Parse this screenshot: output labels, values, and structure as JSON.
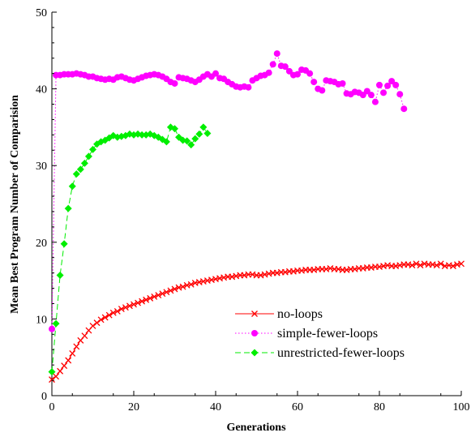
{
  "chart_data": {
    "type": "line",
    "title": "",
    "xlabel": "Generations",
    "ylabel": "Mean Best Program Number of Comparision",
    "xlim": [
      0,
      100
    ],
    "ylim": [
      0,
      50
    ],
    "x_ticks": [
      0,
      20,
      40,
      60,
      80,
      100
    ],
    "y_ticks": [
      0,
      10,
      20,
      30,
      40,
      50
    ],
    "x_tick_labels": [
      "0",
      "20",
      "40",
      "60",
      "80",
      "100"
    ],
    "y_tick_labels": [
      "0",
      "10",
      "20",
      "30",
      "40",
      "50"
    ],
    "grid": false,
    "legend_position": "bottom-right",
    "series": [
      {
        "name": "no-loops",
        "color": "#ff0000",
        "marker": "x",
        "line_style": "solid",
        "x_start": 0,
        "x_step": 1,
        "values": [
          2.1,
          2.5,
          3.2,
          3.9,
          4.6,
          5.5,
          6.4,
          7.2,
          7.8,
          8.5,
          9.1,
          9.5,
          9.9,
          10.2,
          10.5,
          10.8,
          11.0,
          11.3,
          11.5,
          11.7,
          11.9,
          12.1,
          12.3,
          12.5,
          12.7,
          12.9,
          13.1,
          13.3,
          13.5,
          13.7,
          13.9,
          14.1,
          14.2,
          14.4,
          14.5,
          14.7,
          14.8,
          14.9,
          15.0,
          15.1,
          15.2,
          15.3,
          15.4,
          15.5,
          15.5,
          15.6,
          15.7,
          15.7,
          15.8,
          15.8,
          15.7,
          15.7,
          15.8,
          15.9,
          16.0,
          16.0,
          16.1,
          16.1,
          16.2,
          16.2,
          16.3,
          16.3,
          16.4,
          16.4,
          16.4,
          16.5,
          16.5,
          16.5,
          16.6,
          16.5,
          16.5,
          16.4,
          16.4,
          16.5,
          16.5,
          16.6,
          16.6,
          16.7,
          16.7,
          16.8,
          16.8,
          16.9,
          17.0,
          16.9,
          16.9,
          17.0,
          17.1,
          17.1,
          17.0,
          17.2,
          17.0,
          17.2,
          17.1,
          17.1,
          17.0,
          17.2,
          16.9,
          17.0,
          16.9,
          17.1,
          17.2
        ]
      },
      {
        "name": "simple-fewer-loops",
        "color": "#ff00ff",
        "marker": "circle",
        "line_style": "dotted",
        "x_start": 0,
        "x_step": 1,
        "values": [
          8.7,
          41.8,
          41.8,
          41.9,
          41.9,
          41.9,
          42.0,
          41.9,
          41.8,
          41.6,
          41.6,
          41.4,
          41.3,
          41.2,
          41.3,
          41.2,
          41.5,
          41.6,
          41.4,
          41.2,
          41.1,
          41.3,
          41.5,
          41.7,
          41.8,
          41.9,
          41.8,
          41.6,
          41.3,
          40.9,
          40.7,
          41.5,
          41.4,
          41.3,
          41.1,
          40.9,
          41.2,
          41.6,
          41.9,
          41.6,
          42.0,
          41.4,
          41.3,
          40.9,
          40.6,
          40.3,
          40.2,
          40.3,
          40.2,
          41.1,
          41.4,
          41.7,
          41.8,
          42.1,
          43.2,
          44.6,
          43.0,
          42.9,
          42.3,
          41.8,
          41.9,
          42.5,
          42.4,
          42.0,
          40.9,
          40.0,
          39.8,
          41.1,
          41.0,
          40.9,
          40.6,
          40.7,
          39.4,
          39.3,
          39.6,
          39.5,
          39.2,
          39.7,
          39.2,
          38.3,
          40.5,
          39.5,
          40.4,
          41.0,
          40.5,
          39.3,
          37.4
        ]
      },
      {
        "name": "unrestricted-fewer-loops",
        "color": "#00ee00",
        "marker": "diamond",
        "line_style": "dashed",
        "x_start": 0,
        "x_step": 1,
        "values": [
          3.1,
          9.4,
          15.7,
          19.8,
          24.4,
          27.3,
          28.9,
          29.5,
          30.3,
          31.2,
          32.1,
          32.8,
          33.1,
          33.3,
          33.6,
          33.9,
          33.7,
          33.8,
          33.9,
          34.1,
          34.0,
          34.1,
          34.0,
          34.0,
          34.1,
          33.9,
          33.7,
          33.4,
          33.1,
          35.0,
          34.8,
          33.7,
          33.3,
          33.2,
          32.7,
          33.5,
          34.1,
          35.0,
          34.2
        ]
      }
    ]
  }
}
